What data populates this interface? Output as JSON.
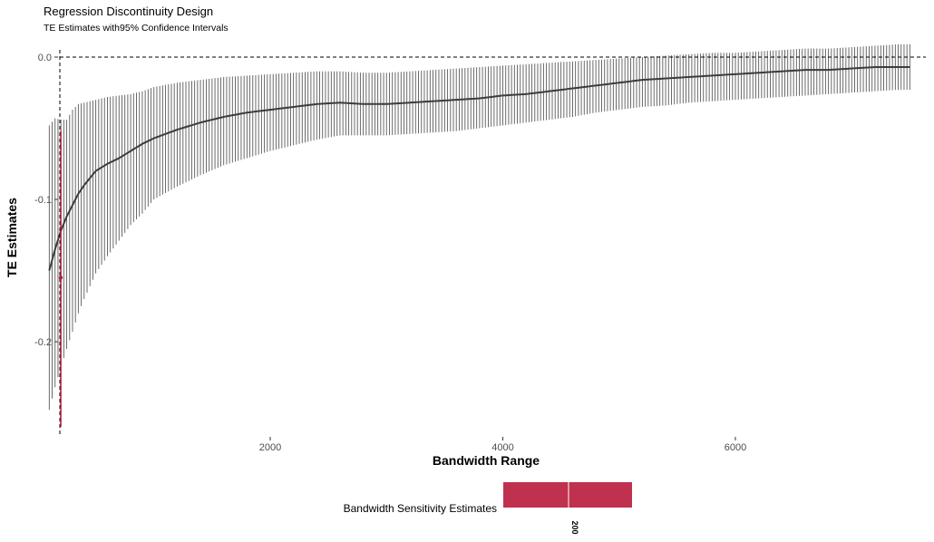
{
  "chart_data": {
    "type": "scatter",
    "title": "Regression Discontinuity Design",
    "subtitle": "TE Estimates with95% Confidence Intervals",
    "xlabel": "Bandwidth Range",
    "ylabel": "TE Estimates",
    "xlim": [
      0,
      7600
    ],
    "ylim": [
      -0.265,
      0.009
    ],
    "x_ticks": [
      2000,
      4000,
      6000
    ],
    "x_tick_labels": [
      "2000",
      "4000",
      "6000"
    ],
    "y_ticks": [
      0.0,
      -0.1,
      -0.2
    ],
    "y_tick_labels": [
      "0.0",
      "-0.1",
      "-0.2"
    ],
    "reference_lines": {
      "horizontal_y": 0.0,
      "vertical_x": 0
    },
    "grid": false,
    "legend_position": "bottom",
    "legend": {
      "title": "Bandwidth Sensitivity Estimates",
      "label": "200",
      "color": "#c0304f"
    },
    "highlight": {
      "x": 0,
      "estimate": -0.155,
      "lower": -0.26,
      "upper": -0.052,
      "color": "#b02040"
    },
    "series": [
      {
        "x": [
          100,
          150,
          200,
          250,
          300,
          350,
          400,
          500,
          600,
          700,
          800,
          900,
          1000,
          1200,
          1400,
          1600,
          1800,
          2000,
          2200,
          2400,
          2600,
          2800,
          3000,
          3200,
          3400,
          3600,
          3800,
          4000,
          4200,
          4400,
          4600,
          4800,
          5000,
          5200,
          5400,
          5600,
          5800,
          6000,
          6200,
          6400,
          6600,
          6800,
          7000,
          7200,
          7400,
          7500
        ],
        "estimate": [
          -0.15,
          -0.135,
          -0.122,
          -0.112,
          -0.104,
          -0.096,
          -0.09,
          -0.08,
          -0.075,
          -0.071,
          -0.066,
          -0.061,
          -0.057,
          -0.051,
          -0.046,
          -0.042,
          -0.039,
          -0.037,
          -0.035,
          -0.033,
          -0.032,
          -0.033,
          -0.033,
          -0.032,
          -0.031,
          -0.03,
          -0.029,
          -0.027,
          -0.026,
          -0.024,
          -0.022,
          -0.02,
          -0.018,
          -0.016,
          -0.015,
          -0.014,
          -0.013,
          -0.012,
          -0.011,
          -0.01,
          -0.009,
          -0.009,
          -0.008,
          -0.007,
          -0.007,
          -0.007
        ],
        "lower": [
          -0.248,
          -0.232,
          -0.218,
          -0.205,
          -0.193,
          -0.18,
          -0.17,
          -0.152,
          -0.14,
          -0.129,
          -0.118,
          -0.11,
          -0.1,
          -0.091,
          -0.083,
          -0.076,
          -0.071,
          -0.066,
          -0.062,
          -0.058,
          -0.055,
          -0.055,
          -0.055,
          -0.054,
          -0.053,
          -0.052,
          -0.05,
          -0.048,
          -0.046,
          -0.044,
          -0.042,
          -0.039,
          -0.037,
          -0.035,
          -0.034,
          -0.032,
          -0.031,
          -0.03,
          -0.029,
          -0.028,
          -0.027,
          -0.026,
          -0.025,
          -0.024,
          -0.023,
          -0.023
        ],
        "upper": [
          -0.048,
          -0.043,
          -0.044,
          -0.044,
          -0.037,
          -0.033,
          -0.032,
          -0.03,
          -0.028,
          -0.027,
          -0.026,
          -0.024,
          -0.021,
          -0.018,
          -0.016,
          -0.014,
          -0.013,
          -0.012,
          -0.011,
          -0.01,
          -0.01,
          -0.011,
          -0.011,
          -0.01,
          -0.009,
          -0.008,
          -0.007,
          -0.006,
          -0.005,
          -0.004,
          -0.003,
          -0.002,
          -0.001,
          0.0,
          0.001,
          0.002,
          0.003,
          0.003,
          0.004,
          0.005,
          0.006,
          0.006,
          0.007,
          0.008,
          0.009,
          0.009
        ],
        "bar_spacing": 25
      }
    ]
  }
}
